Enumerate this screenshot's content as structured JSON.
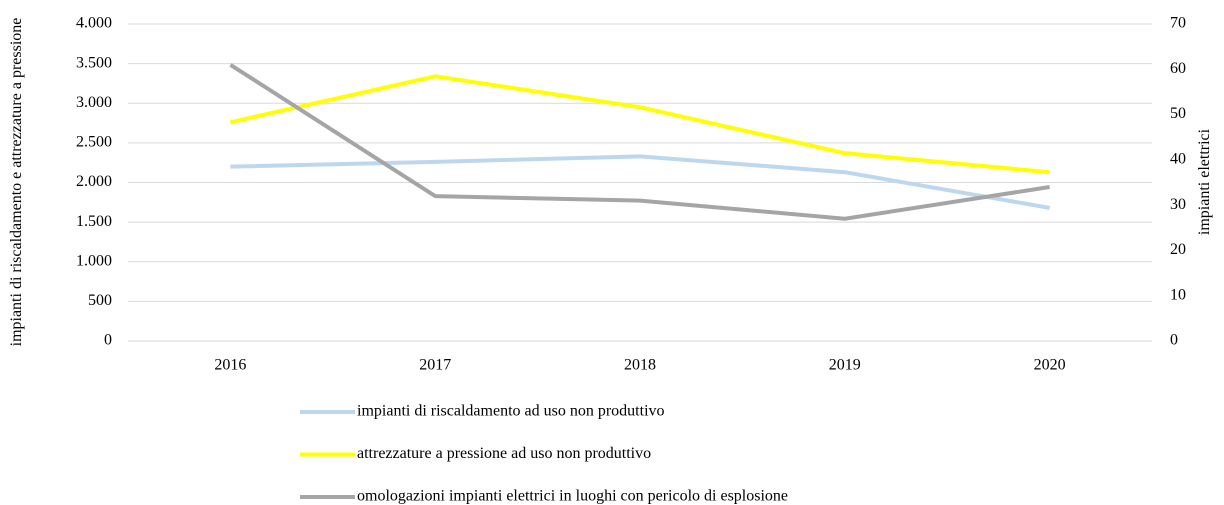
{
  "chart_data": {
    "type": "line",
    "categories": [
      "2016",
      "2017",
      "2018",
      "2019",
      "2020"
    ],
    "y_label": "impianti di riscaldamento e attrezzature a pressione",
    "y2_label": "impianti elettrici",
    "series": [
      {
        "name": "impianti di riscaldamento ad uso non produttivo",
        "color": "#bdd7ee",
        "axis": "y",
        "values": [
          2200,
          2260,
          2330,
          2130,
          1680
        ]
      },
      {
        "name": "attrezzature a pressione ad uso non produttivo",
        "color": "#ffff00",
        "axis": "y",
        "values": [
          2760,
          3340,
          2950,
          2370,
          2130
        ]
      },
      {
        "name": "omologazioni impianti elettrici in luoghi con pericolo di esplosione",
        "color": "#a5a5a5",
        "axis": "y2",
        "values": [
          61,
          32,
          31,
          27,
          34
        ]
      }
    ],
    "ylim": [
      0,
      4000
    ],
    "yticks": [
      0,
      500,
      {
        "value": 1000,
        "label": "1.000"
      },
      {
        "value": 1500,
        "label": "1.500"
      },
      {
        "value": 2000,
        "label": "2.000"
      },
      {
        "value": 2500,
        "label": "2.500"
      },
      {
        "value": 3000,
        "label": "3.000"
      },
      {
        "value": 3500,
        "label": "3.500"
      },
      {
        "value": 4000,
        "label": "4.000"
      }
    ],
    "y2lim": [
      0,
      70
    ],
    "y2ticks": [
      0,
      10,
      20,
      30,
      40,
      50,
      60,
      70
    ],
    "grid": true,
    "legend": "bottom"
  }
}
